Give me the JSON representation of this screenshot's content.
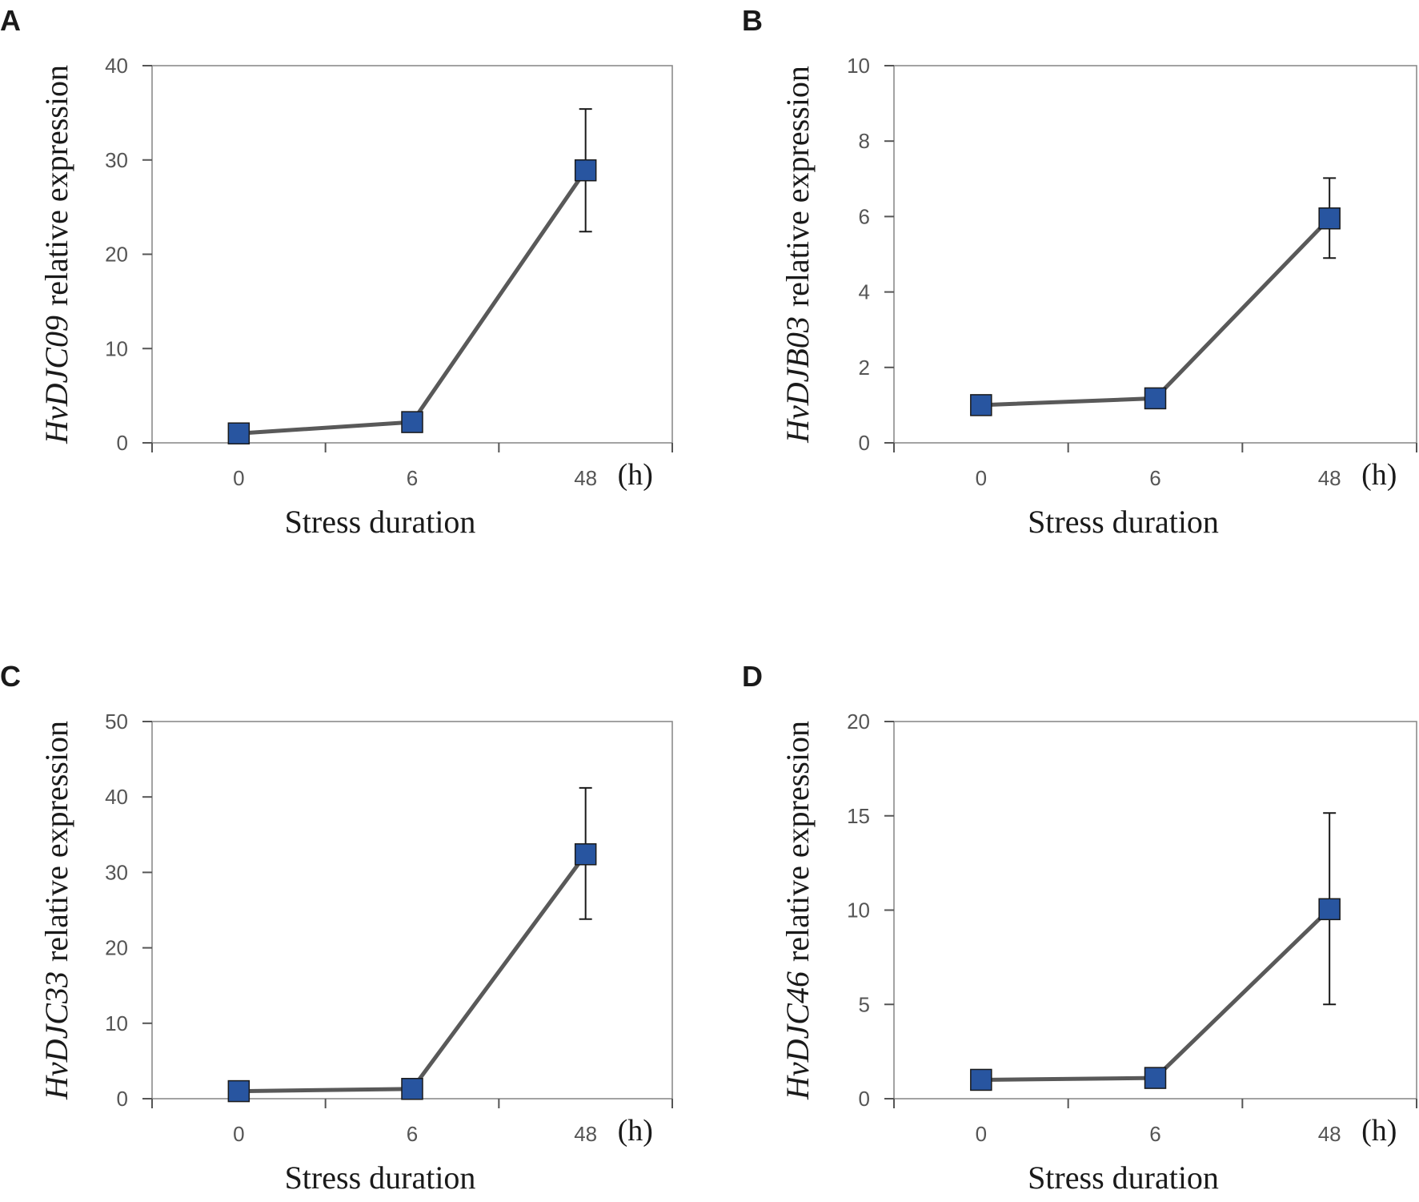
{
  "chart_data": [
    {
      "type": "line",
      "panel": "A",
      "gene": "HvDJC09",
      "ylabel_suffix": "relative expression",
      "xlabel": "Stress duration",
      "x_unit": "(h)",
      "categories": [
        "0",
        "6",
        "48"
      ],
      "values": [
        1.0,
        2.2,
        28.9
      ],
      "errors_upper": [
        0,
        0,
        6.5
      ],
      "errors_lower": [
        0,
        0,
        6.5
      ],
      "yticks": [
        "0",
        "10",
        "20",
        "30",
        "40"
      ],
      "ylim": [
        0,
        40
      ],
      "ytick_step": 10
    },
    {
      "type": "line",
      "panel": "B",
      "gene": "HvDJB03",
      "ylabel_suffix": "relative expression",
      "xlabel": "Stress duration",
      "x_unit": "(h)",
      "categories": [
        "0",
        "6",
        "48"
      ],
      "values": [
        1.0,
        1.18,
        5.95
      ],
      "errors_upper": [
        0,
        0,
        1.07
      ],
      "errors_lower": [
        0,
        0,
        1.05
      ],
      "yticks": [
        "0",
        "2",
        "4",
        "6",
        "8",
        "10"
      ],
      "ylim": [
        0,
        10
      ],
      "ytick_step": 2
    },
    {
      "type": "line",
      "panel": "C",
      "gene": "HvDJC33",
      "ylabel_suffix": "relative expression",
      "xlabel": "Stress duration",
      "x_unit": "(h)",
      "categories": [
        "0",
        "6",
        "48"
      ],
      "values": [
        1.0,
        1.3,
        32.4
      ],
      "errors_upper": [
        0,
        0,
        8.8
      ],
      "errors_lower": [
        0,
        0,
        8.6
      ],
      "yticks": [
        "0",
        "10",
        "20",
        "30",
        "40",
        "50"
      ],
      "ylim": [
        0,
        50
      ],
      "ytick_step": 10
    },
    {
      "type": "line",
      "panel": "D",
      "gene": "HvDJC46",
      "ylabel_suffix": "relative expression",
      "xlabel": "Stress duration",
      "x_unit": "(h)",
      "categories": [
        "0",
        "6",
        "48"
      ],
      "values": [
        1.0,
        1.1,
        10.05
      ],
      "errors_upper": [
        0,
        0,
        5.1
      ],
      "errors_lower": [
        0,
        0,
        5.05
      ],
      "yticks": [
        "0",
        "5",
        "10",
        "15",
        "20"
      ],
      "ylim": [
        0,
        20
      ],
      "ytick_step": 5
    }
  ],
  "colors": {
    "marker": "#2855a0",
    "line": "#595959",
    "frame": "#8c8c8c"
  }
}
